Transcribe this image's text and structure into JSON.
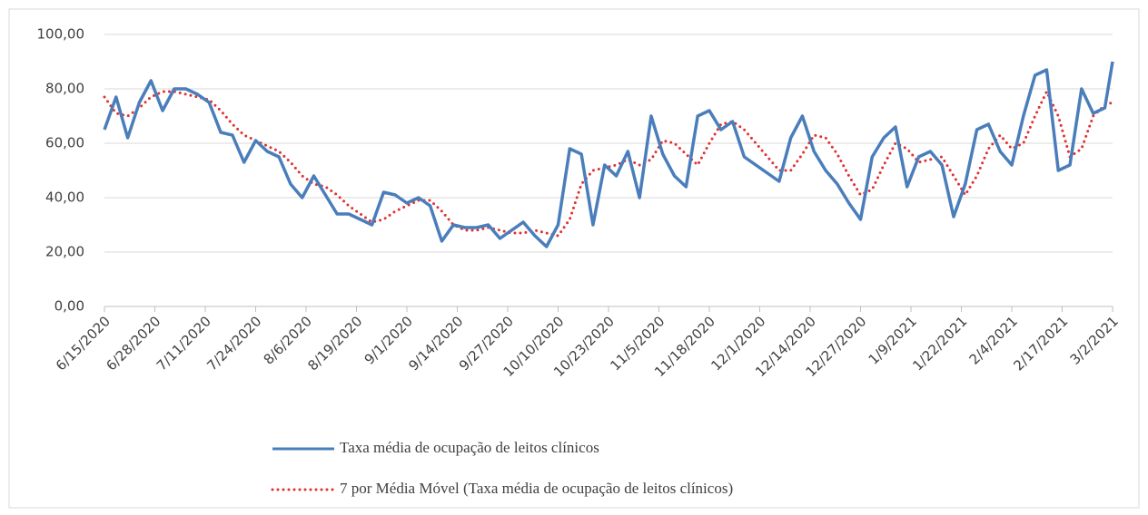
{
  "chart_data": {
    "type": "line",
    "x": [
      "6/15/2020",
      "6/18/2020",
      "6/21/2020",
      "6/24/2020",
      "6/27/2020",
      "6/30/2020",
      "7/3/2020",
      "7/6/2020",
      "7/9/2020",
      "7/12/2020",
      "7/15/2020",
      "7/18/2020",
      "7/21/2020",
      "7/24/2020",
      "7/27/2020",
      "7/30/2020",
      "8/2/2020",
      "8/5/2020",
      "8/8/2020",
      "8/11/2020",
      "8/14/2020",
      "8/17/2020",
      "8/20/2020",
      "8/23/2020",
      "8/26/2020",
      "8/29/2020",
      "9/1/2020",
      "9/4/2020",
      "9/7/2020",
      "9/10/2020",
      "9/13/2020",
      "9/16/2020",
      "9/19/2020",
      "9/22/2020",
      "9/25/2020",
      "9/28/2020",
      "10/1/2020",
      "10/4/2020",
      "10/7/2020",
      "10/10/2020",
      "10/13/2020",
      "10/16/2020",
      "10/19/2020",
      "10/22/2020",
      "10/25/2020",
      "10/28/2020",
      "10/31/2020",
      "11/3/2020",
      "11/6/2020",
      "11/9/2020",
      "11/12/2020",
      "11/15/2020",
      "11/18/2020",
      "11/21/2020",
      "11/24/2020",
      "11/27/2020",
      "11/30/2020",
      "12/3/2020",
      "12/6/2020",
      "12/9/2020",
      "12/12/2020",
      "12/15/2020",
      "12/18/2020",
      "12/21/2020",
      "12/24/2020",
      "12/27/2020",
      "12/30/2020",
      "1/2/2021",
      "1/5/2021",
      "1/8/2021",
      "1/11/2021",
      "1/14/2021",
      "1/17/2021",
      "1/20/2021",
      "1/23/2021",
      "1/26/2021",
      "1/29/2021",
      "2/1/2021",
      "2/4/2021",
      "2/7/2021",
      "2/10/2021",
      "2/13/2021",
      "2/16/2021",
      "2/19/2021",
      "2/22/2021",
      "2/25/2021",
      "2/28/2021",
      "3/2/2021"
    ],
    "series": [
      {
        "name": "Taxa média de ocupação de leitos clínicos",
        "color": "#4a7ebb",
        "style": "solid",
        "values": [
          65,
          77,
          62,
          75,
          83,
          72,
          80,
          80,
          78,
          75,
          64,
          63,
          53,
          61,
          57,
          55,
          45,
          40,
          48,
          41,
          34,
          34,
          32,
          30,
          42,
          41,
          38,
          40,
          37,
          24,
          30,
          29,
          29,
          30,
          25,
          28,
          31,
          26,
          22,
          30,
          58,
          56,
          30,
          52,
          48,
          57,
          40,
          70,
          56,
          48,
          44,
          70,
          72,
          65,
          68,
          55,
          52,
          49,
          46,
          62,
          70,
          57,
          50,
          45,
          38,
          32,
          55,
          62,
          66,
          44,
          55,
          57,
          52,
          33,
          45,
          65,
          67,
          57,
          52,
          70,
          85,
          87,
          50,
          52,
          80,
          71,
          73,
          90
        ]
      },
      {
        "name": "7 por Média Móvel (Taxa média de ocupação de leitos clínicos)",
        "color": "#e03030",
        "style": "dotted",
        "values": [
          77,
          71,
          70,
          73,
          77,
          79,
          79,
          78,
          77,
          76,
          72,
          67,
          63,
          61,
          59,
          57,
          53,
          48,
          45,
          44,
          41,
          37,
          34,
          31,
          32,
          35,
          37,
          39,
          39,
          35,
          30,
          28,
          28,
          29,
          28,
          27,
          27,
          28,
          27,
          26,
          32,
          45,
          50,
          51,
          52,
          54,
          52,
          54,
          61,
          60,
          56,
          52,
          60,
          67,
          68,
          65,
          60,
          55,
          50,
          50,
          56,
          63,
          62,
          56,
          48,
          41,
          43,
          52,
          60,
          58,
          53,
          54,
          55,
          48,
          41,
          48,
          58,
          63,
          58,
          60,
          70,
          79,
          70,
          55,
          58,
          70,
          74,
          75
        ]
      }
    ],
    "xlim": [
      "6/15/2020",
      "3/2/2021"
    ],
    "xticks": [
      "6/15/2020",
      "6/28/2020",
      "7/11/2020",
      "7/24/2020",
      "8/6/2020",
      "8/19/2020",
      "9/1/2020",
      "9/14/2020",
      "9/27/2020",
      "10/10/2020",
      "10/23/2020",
      "11/5/2020",
      "11/18/2020",
      "12/1/2020",
      "12/14/2020",
      "12/27/2020",
      "1/9/2021",
      "1/22/2021",
      "2/4/2021",
      "2/17/2021",
      "3/2/2021"
    ],
    "ylim": [
      0,
      100
    ],
    "yticks": [
      {
        "value": 0,
        "label": "0,00"
      },
      {
        "value": 20,
        "label": "20,00"
      },
      {
        "value": 40,
        "label": "40,00"
      },
      {
        "value": 60,
        "label": "60,00"
      },
      {
        "value": 80,
        "label": "80,00"
      },
      {
        "value": 100,
        "label": "100,00"
      }
    ],
    "grid": true,
    "legend": "bottom"
  }
}
